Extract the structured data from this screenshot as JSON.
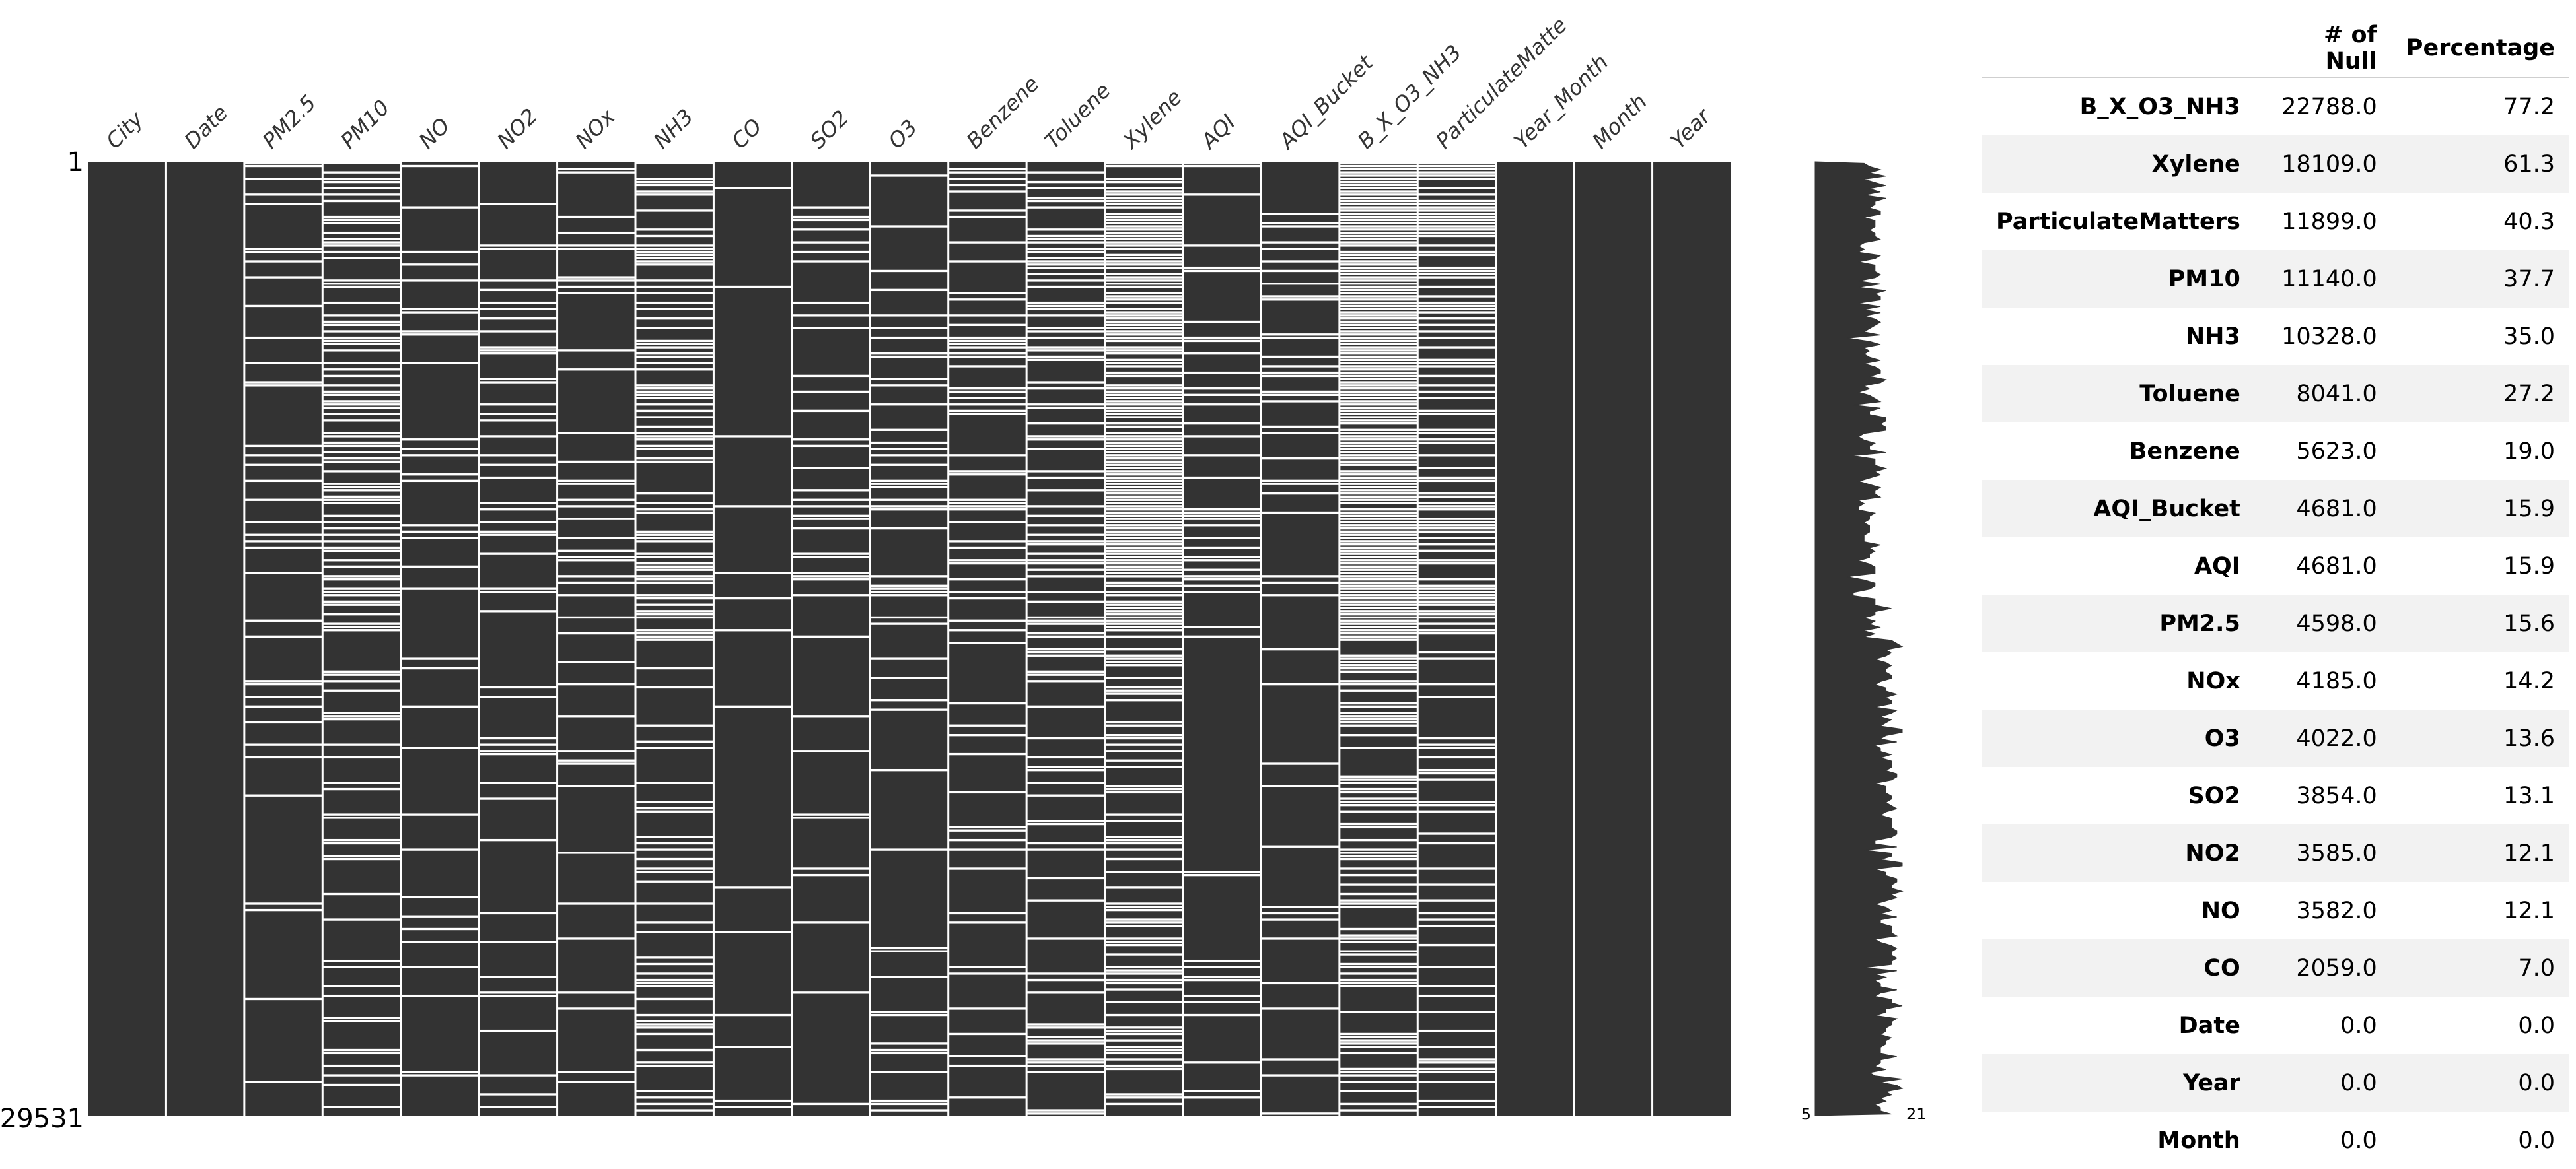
{
  "chart_data": [
    {
      "type": "heatmap",
      "title": "",
      "columns": [
        "City",
        "Date",
        "PM2.5",
        "PM10",
        "NO",
        "NO2",
        "NOx",
        "NH3",
        "CO",
        "SO2",
        "O3",
        "Benzene",
        "Toluene",
        "Xylene",
        "AQI",
        "AQI_Bucket",
        "B_X_O3_NH3",
        "ParticulateMatte",
        "Year_Month",
        "Month",
        "Year"
      ],
      "null_fraction": [
        0.0,
        0.0,
        0.156,
        0.377,
        0.121,
        0.121,
        0.142,
        0.35,
        0.07,
        0.131,
        0.136,
        0.19,
        0.272,
        0.613,
        0.159,
        0.159,
        0.772,
        0.403,
        0.0,
        0.0,
        0.0
      ],
      "row_range_labels": [
        "1",
        "29531"
      ],
      "colors": {
        "present": "#333333",
        "missing": "#ffffff"
      }
    },
    {
      "type": "line",
      "title": "",
      "description_labels": [
        "5",
        "21"
      ],
      "xlim": [
        5,
        21
      ]
    }
  ],
  "table": {
    "headers": [
      "",
      "# of Null",
      "Percentage"
    ],
    "rows": [
      {
        "name": "B_X_O3_NH3",
        "nulls": "22788.0",
        "pct": "77.2"
      },
      {
        "name": "Xylene",
        "nulls": "18109.0",
        "pct": "61.3"
      },
      {
        "name": "ParticulateMatters",
        "nulls": "11899.0",
        "pct": "40.3"
      },
      {
        "name": "PM10",
        "nulls": "11140.0",
        "pct": "37.7"
      },
      {
        "name": "NH3",
        "nulls": "10328.0",
        "pct": "35.0"
      },
      {
        "name": "Toluene",
        "nulls": "8041.0",
        "pct": "27.2"
      },
      {
        "name": "Benzene",
        "nulls": "5623.0",
        "pct": "19.0"
      },
      {
        "name": "AQI_Bucket",
        "nulls": "4681.0",
        "pct": "15.9"
      },
      {
        "name": "AQI",
        "nulls": "4681.0",
        "pct": "15.9"
      },
      {
        "name": "PM2.5",
        "nulls": "4598.0",
        "pct": "15.6"
      },
      {
        "name": "NOx",
        "nulls": "4185.0",
        "pct": "14.2"
      },
      {
        "name": "O3",
        "nulls": "4022.0",
        "pct": "13.6"
      },
      {
        "name": "SO2",
        "nulls": "3854.0",
        "pct": "13.1"
      },
      {
        "name": "NO2",
        "nulls": "3585.0",
        "pct": "12.1"
      },
      {
        "name": "NO",
        "nulls": "3582.0",
        "pct": "12.1"
      },
      {
        "name": "CO",
        "nulls": "2059.0",
        "pct": "7.0"
      },
      {
        "name": "Date",
        "nulls": "0.0",
        "pct": "0.0"
      },
      {
        "name": "Year",
        "nulls": "0.0",
        "pct": "0.0"
      },
      {
        "name": "Month",
        "nulls": "0.0",
        "pct": "0.0"
      }
    ]
  }
}
